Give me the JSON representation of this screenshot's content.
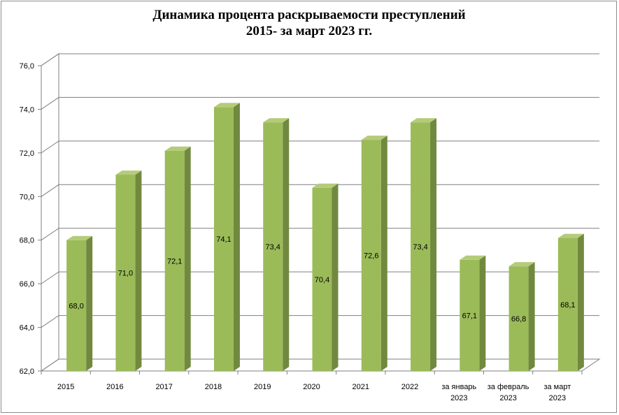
{
  "chart_data": {
    "type": "bar",
    "title": [
      "Динамика процента раскрываемости преступлений",
      "2015- за март 2023 гг."
    ],
    "categories": [
      [
        "2015"
      ],
      [
        "2016"
      ],
      [
        "2017"
      ],
      [
        "2018"
      ],
      [
        "2019"
      ],
      [
        "2020"
      ],
      [
        "2021"
      ],
      [
        "2022"
      ],
      [
        "за январь",
        "2023"
      ],
      [
        "за февраль",
        "2023"
      ],
      [
        "за март",
        "2023"
      ]
    ],
    "values": [
      68.0,
      71.0,
      72.1,
      74.1,
      73.4,
      70.4,
      72.6,
      73.4,
      67.1,
      66.8,
      68.1
    ],
    "value_labels": [
      "68,0",
      "71,0",
      "72,1",
      "74,1",
      "73,4",
      "70,4",
      "72,6",
      "73,4",
      "67,1",
      "66,8",
      "68,1"
    ],
    "y_ticks": [
      62,
      64,
      66,
      68,
      70,
      72,
      74,
      76
    ],
    "y_tick_labels": [
      "62,0",
      "64,0",
      "66,0",
      "68,0",
      "70,0",
      "72,0",
      "74,0",
      "76,0"
    ],
    "ylim": [
      62,
      76
    ],
    "grid": true,
    "legend": "none",
    "colors": {
      "bar_front": "#9bbb59",
      "bar_side": "#71893f",
      "bar_top": "#b4cc7a",
      "grid": "#7f7f7f",
      "wall": "#ffffff"
    }
  }
}
